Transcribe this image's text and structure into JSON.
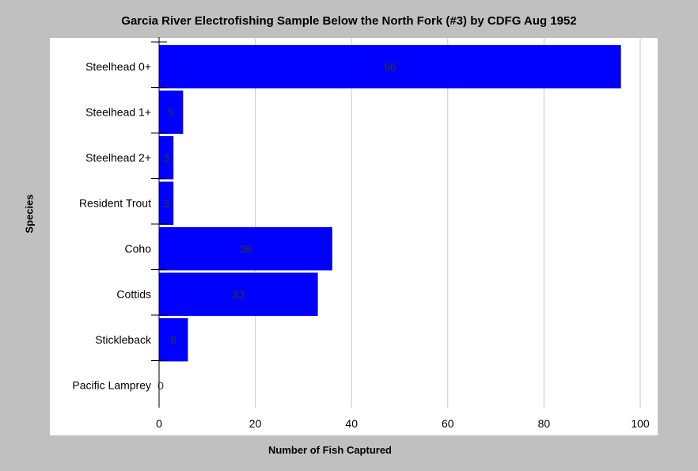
{
  "chart_data": {
    "type": "bar",
    "orientation": "horizontal",
    "title": "Garcia River Electrofishing Sample Below the North Fork (#3) by CDFG Aug 1952",
    "xlabel": "Number of Fish Captured",
    "ylabel": "Species",
    "categories": [
      "Steelhead 0+",
      "Steelhead 1+",
      "Steelhead 2+",
      "Resident Trout",
      "Coho",
      "Cottids",
      "Stickleback",
      "Pacific Lamprey"
    ],
    "values": [
      96,
      5,
      3,
      3,
      36,
      33,
      6,
      0
    ],
    "xlim": [
      0,
      100
    ],
    "xticks": [
      0,
      20,
      40,
      60,
      80,
      100
    ],
    "grid": "vertical",
    "bar_color": "#0000ff",
    "show_data_labels": true
  }
}
